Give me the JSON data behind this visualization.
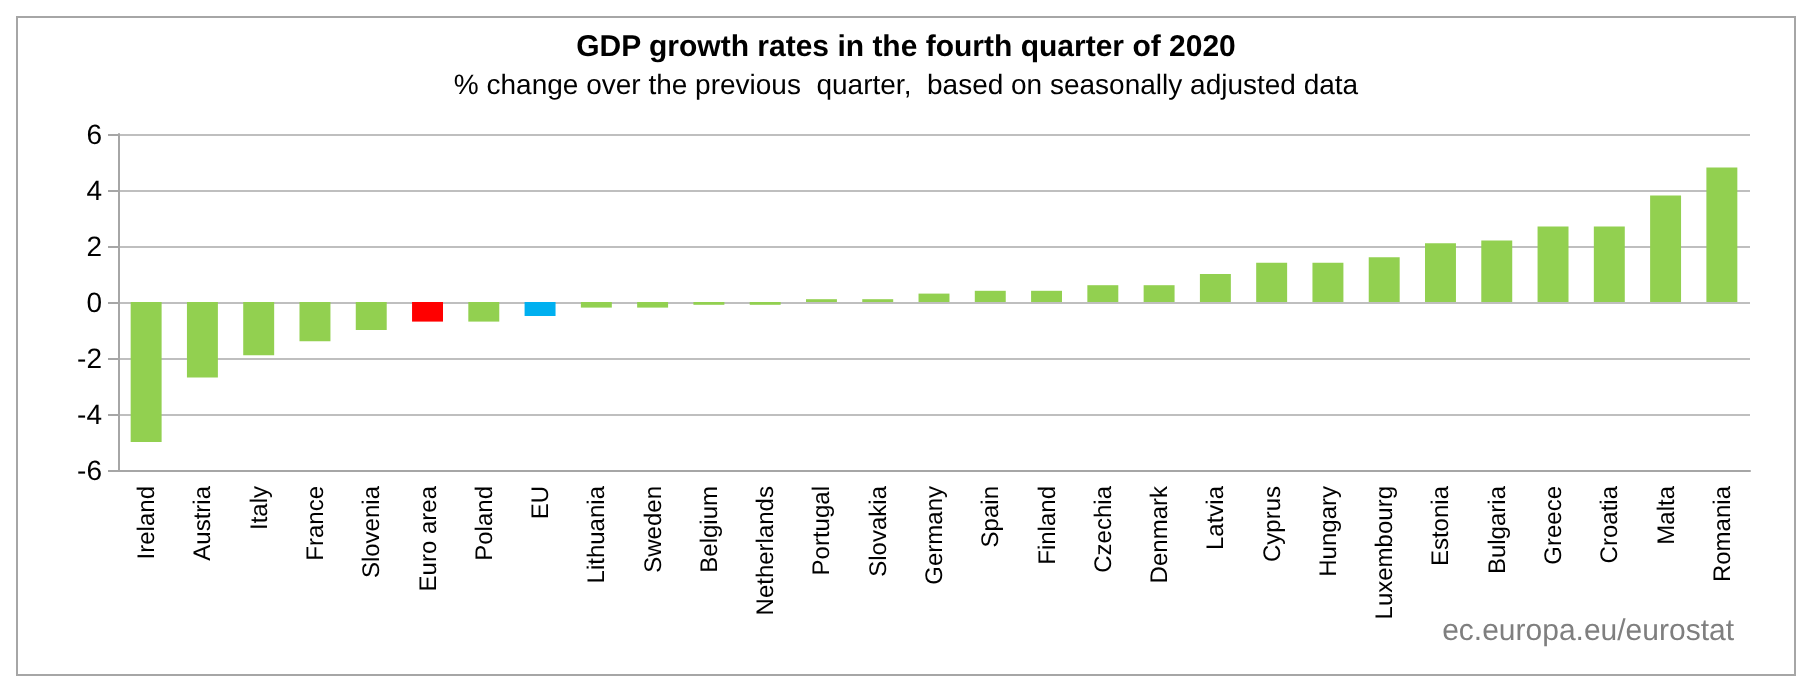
{
  "chart_data": {
    "type": "bar",
    "title": "GDP growth rates in the fourth quarter of 2020",
    "subtitle": "% change over the previous  quarter,  based on seasonally adjusted data",
    "categories": [
      "Ireland",
      "Austria",
      "Italy",
      "France",
      "Slovenia",
      "Euro area",
      "Poland",
      "EU",
      "Lithuania",
      "Sweden",
      "Belgium",
      "Netherlands",
      "Portugal",
      "Slovakia",
      "Germany",
      "Spain",
      "Finland",
      "Czechia",
      "Denmark",
      "Latvia",
      "Cyprus",
      "Hungary",
      "Luxembourg",
      "Estonia",
      "Bulgaria",
      "Greece",
      "Croatia",
      "Malta",
      "Romania"
    ],
    "values": [
      -5.0,
      -2.7,
      -1.9,
      -1.4,
      -1.0,
      -0.7,
      -0.7,
      -0.5,
      -0.2,
      -0.2,
      -0.1,
      -0.1,
      0.1,
      0.1,
      0.3,
      0.4,
      0.4,
      0.6,
      0.6,
      1.0,
      1.4,
      1.4,
      1.6,
      2.1,
      2.2,
      2.7,
      2.7,
      3.8,
      4.8
    ],
    "colors": [
      "#92d050",
      "#92d050",
      "#92d050",
      "#92d050",
      "#92d050",
      "#ff0000",
      "#92d050",
      "#00b0f0",
      "#92d050",
      "#92d050",
      "#92d050",
      "#92d050",
      "#92d050",
      "#92d050",
      "#92d050",
      "#92d050",
      "#92d050",
      "#92d050",
      "#92d050",
      "#92d050",
      "#92d050",
      "#92d050",
      "#92d050",
      "#92d050",
      "#92d050",
      "#92d050",
      "#92d050",
      "#92d050",
      "#92d050"
    ],
    "ylim": [
      -6,
      6
    ],
    "yticks": [
      -6,
      -4,
      -2,
      0,
      2,
      4,
      6
    ],
    "grid": "y",
    "annotations": [
      "ec.europa.eu/eurostat"
    ]
  }
}
